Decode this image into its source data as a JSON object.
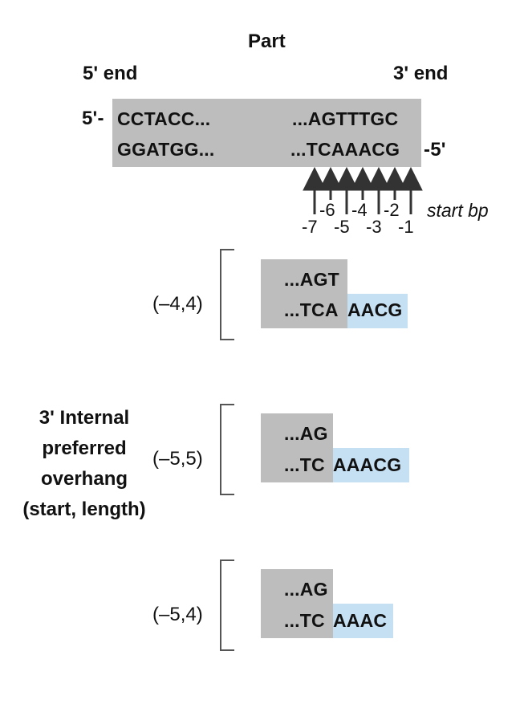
{
  "title": "Part",
  "five_prime_end": "5' end",
  "three_prime_end": "3' end",
  "strand": {
    "top_prefix": "5'-",
    "top_left": "CCTACC...",
    "top_right": "...AGTTTGC",
    "bottom_left": "GGATGG...",
    "bottom_right": "...TCAAACG",
    "bottom_suffix": "-5'"
  },
  "start_bp_label": "start bp",
  "ticks_upper": [
    "-6",
    "-4",
    "-2"
  ],
  "ticks_lower": [
    "-7",
    "-5",
    "-3",
    "-1"
  ],
  "side_label": [
    "3' Internal",
    "preferred",
    "overhang",
    "(start, length)"
  ],
  "overhangs": [
    {
      "label": "(–4,4)",
      "top": "...AGT",
      "bottom_gray": "...TCA",
      "bottom_blue": "AACG"
    },
    {
      "label": "(–5,5)",
      "top": "...AG",
      "bottom_gray": "...TC",
      "bottom_blue": "AAACG"
    },
    {
      "label": "(–5,4)",
      "top": "...AG",
      "bottom_gray": "...TC",
      "bottom_blue": "AAAC"
    }
  ],
  "colors": {
    "gray": "#bdbdbd",
    "blue": "#c5dff3",
    "arrow": "#333333"
  }
}
